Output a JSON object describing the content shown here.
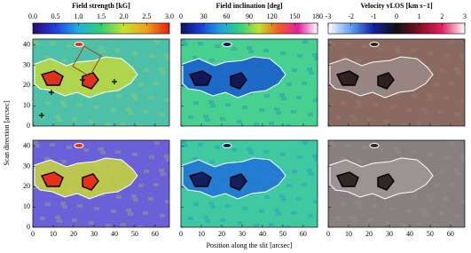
{
  "chart_data": [
    {
      "type": "map",
      "title": "Field strength  [kG]",
      "colorbar": {
        "lim": [
          0,
          3
        ],
        "ticks": [
          {
            "value": 0,
            "label": "0.0"
          },
          0.5,
          {
            "value": 1,
            "label": "1.0"
          },
          1.5,
          {
            "value": 2,
            "label": "2.0"
          },
          2.5,
          {
            "value": 3,
            "label": "3.0"
          }
        ],
        "colors": [
          "#2a0a6e",
          "#2040e0",
          "#20b0e0",
          "#30d070",
          "#c8e030",
          "#f0a020",
          "#e02010"
        ]
      },
      "ylabel": "Scan direction  [arcsec]",
      "xlim": [
        0,
        67
      ],
      "xticks": [
        0,
        10,
        20,
        30,
        40,
        50,
        60
      ],
      "ylim": [
        0,
        43
      ],
      "yticks": [
        0,
        10,
        20,
        30,
        40
      ]
    },
    {
      "type": "map",
      "title": "Field inclination  [deg]",
      "colorbar": {
        "lim": [
          0,
          180
        ],
        "ticks": [
          0,
          30,
          60,
          90,
          120,
          150,
          180
        ],
        "colors": [
          "#101060",
          "#1840d0",
          "#20a0e0",
          "#30d080",
          "#c0e030",
          "#f06020",
          "#e020a0",
          "#ffffff"
        ]
      },
      "xlabel": "Position along the slit  [arcsec]",
      "xlim": [
        0,
        67
      ],
      "xticks": [
        0,
        10,
        20,
        30,
        40,
        50,
        60
      ],
      "ylim": [
        0,
        43
      ],
      "yticks": [
        0,
        10,
        20,
        30,
        40
      ]
    },
    {
      "type": "map",
      "title": "Velocity  vLOS  [km s−1]",
      "colorbar": {
        "lim": [
          -3,
          3
        ],
        "ticks": [
          -3,
          -2,
          -1,
          0,
          1,
          2,
          3
        ],
        "colors": [
          "#ffffff",
          "#60a0f0",
          "#1020a0",
          "#101010",
          "#801020",
          "#e02060",
          "#ffffff"
        ]
      },
      "xlim": [
        0,
        67
      ],
      "xticks": [
        0,
        10,
        20,
        30,
        40,
        50,
        60
      ],
      "ylim": [
        0,
        43
      ],
      "yticks": [
        0,
        10,
        20,
        30,
        40
      ]
    }
  ]
}
